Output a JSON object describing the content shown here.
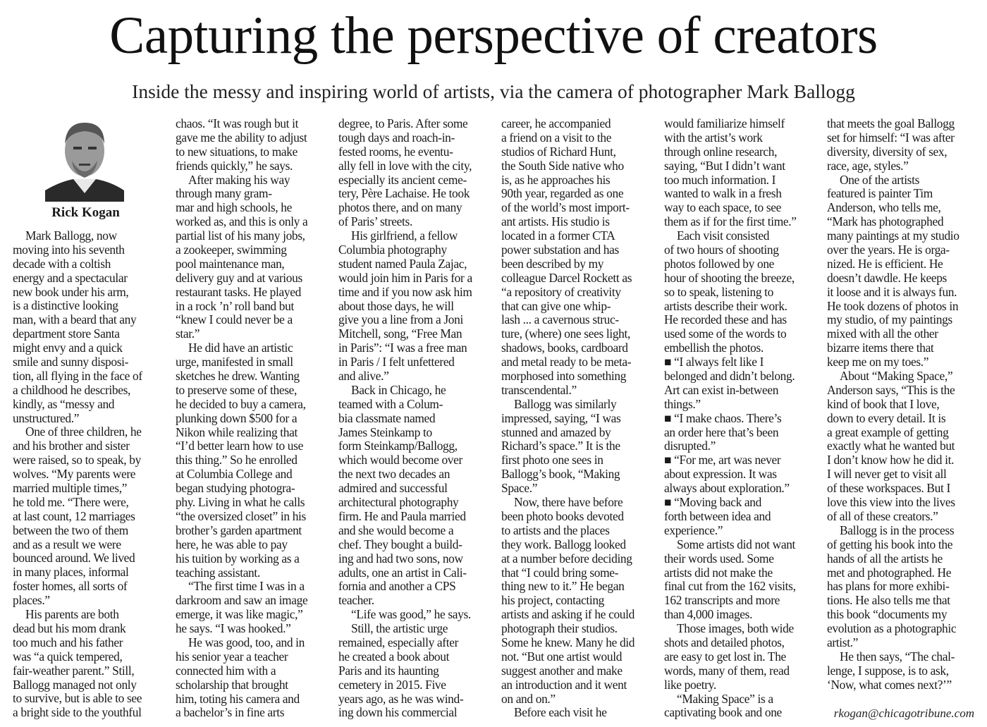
{
  "headline": "Capturing the perspective of creators",
  "subheadline": "Inside the messy and inspiring world of artists, via the camera of photographer Mark Ballogg",
  "byline": "Rick Kogan",
  "author_photo": "headshot of a man with gray hair and a beard",
  "email": "rkogan@chicagotribune.com",
  "columns": [
    {
      "paragraphs": [
        {
          "indent": true,
          "lines": [
            "Mark Ballogg, now",
            "moving into his seventh",
            "decade with a coltish",
            "energy and a spectacular",
            "new book under his arm,",
            "is a distinctive looking",
            "man, with a beard that any",
            "department store Santa",
            "might envy and a quick",
            "smile and sunny disposi-",
            "tion, all flying in the face of",
            "a childhood he describes,",
            "kindly, as “messy and",
            "unstructured.”"
          ]
        },
        {
          "indent": true,
          "lines": [
            "One of three children, he",
            "and his brother and sister",
            "were raised, so to speak, by",
            "wolves. “My parents were",
            "married multiple times,”",
            "he told me. “There were,",
            "at last count, 12 marriages",
            "between the two of them",
            "and as a result we were",
            "bounced around. We lived",
            "in many places, informal",
            "foster homes, all sorts of",
            "places.”"
          ]
        },
        {
          "indent": true,
          "lines": [
            "His parents are both",
            "dead but his mom drank",
            "too much and his father",
            "was “a quick tempered,",
            "fair-weather parent.” Still,",
            "Ballogg managed not only",
            "to survive, but is able to see",
            "a bright side to the youthful"
          ]
        }
      ]
    },
    {
      "paragraphs": [
        {
          "indent": false,
          "lines": [
            "chaos. “It was rough but it",
            "gave me the ability to adjust",
            "to new situations, to make",
            "friends quickly,” he says."
          ]
        },
        {
          "indent": true,
          "lines": [
            "After making his way",
            "through many gram-",
            "mar and high schools, he",
            "worked as, and this is only a",
            "partial list of his many jobs,",
            "a zookeeper, swimming",
            "pool maintenance man,",
            "delivery guy and at various",
            "restaurant tasks. He played",
            "in a rock ’n’ roll band but",
            "“knew I could never be a",
            "star.”"
          ]
        },
        {
          "indent": true,
          "lines": [
            "He did have an artistic",
            "urge, manifested in small",
            "sketches he drew. Wanting",
            "to preserve some of these,",
            "he decided to buy a camera,",
            "plunking down $500 for a",
            "Nikon while realizing that",
            "“I’d better learn how to use",
            "this thing.” So he enrolled",
            "at Columbia College and",
            "began studying photogra-",
            "phy. Living in what he calls",
            "“the oversized closet” in his",
            "brother’s garden apartment",
            "here, he was able to pay",
            "his tuition by working as a",
            "teaching assistant."
          ]
        },
        {
          "indent": true,
          "lines": [
            "“The first time I was in a",
            "darkroom and saw an image",
            "emerge, it was like magic,”",
            "he says. “I was hooked.”"
          ]
        },
        {
          "indent": true,
          "lines": [
            "He was good, too, and in",
            "his senior year a teacher",
            "connected him with a",
            "scholarship that brought",
            "him, toting his camera and",
            "a bachelor’s in fine arts"
          ]
        }
      ]
    },
    {
      "paragraphs": [
        {
          "indent": false,
          "lines": [
            "degree, to Paris. After some",
            "tough days and roach-in-",
            "fested rooms, he eventu-",
            "ally fell in love with the city,",
            "especially its ancient ceme-",
            "tery, Père Lachaise. He took",
            "photos there, and on many",
            "of Paris’ streets."
          ]
        },
        {
          "indent": true,
          "lines": [
            "His girlfriend, a fellow",
            "Columbia photography",
            "student named Paula Zajac,",
            "would join him in Paris for a",
            "time and if you now ask him",
            "about those days, he will",
            "give you a line from a Joni",
            "Mitchell, song, “Free Man",
            "in Paris”: “I was a free man",
            "in Paris / I felt unfettered",
            "and alive.”"
          ]
        },
        {
          "indent": true,
          "lines": [
            "Back in Chicago, he",
            "teamed with a Colum-",
            "bia classmate named",
            "James Steinkamp to",
            "form Steinkamp/Ballogg,",
            "which would become over",
            "the next two decades an",
            "admired and successful",
            "architectural photography",
            "firm. He and Paula married",
            "and she would become a",
            "chef. They bought a build-",
            "ing and had two sons, now",
            "adults, one an artist in Cali-",
            "fornia and another a CPS",
            "teacher."
          ]
        },
        {
          "indent": true,
          "lines": [
            "“Life was good,” he says."
          ]
        },
        {
          "indent": true,
          "lines": [
            "Still, the artistic urge",
            "remained, especially after",
            "he created a book about",
            "Paris and its haunting",
            "cemetery in 2015. Five",
            "years ago, as he was wind-",
            "ing down his commercial"
          ]
        }
      ]
    },
    {
      "paragraphs": [
        {
          "indent": false,
          "lines": [
            "career, he accompanied",
            "a friend on a visit to the",
            "studios of Richard Hunt,",
            "the South Side native who",
            "is, as he approaches his",
            "90th year, regarded as one",
            "of the world’s most import-",
            "ant artists. His studio is",
            "located in a former CTA",
            "power substation and has",
            "been described by my",
            "colleague Darcel Rockett as",
            "“a repository of creativity",
            "that can give one whip-",
            "lash ... a cavernous struc-",
            "ture, (where) one sees light,",
            "shadows, books, cardboard",
            "and metal ready to be meta-",
            "morphosed into something",
            "transcendental.”"
          ]
        },
        {
          "indent": true,
          "lines": [
            "Ballogg was similarly",
            "impressed, saying, “I was",
            "stunned and amazed by",
            "Richard’s space.” It is the",
            "first photo one sees in",
            "Ballogg’s book, “Making",
            "Space.”"
          ]
        },
        {
          "indent": true,
          "lines": [
            "Now, there have before",
            "been photo books devoted",
            "to artists and the places",
            "they work. Ballogg looked",
            "at a number before deciding",
            "that “I could bring some-",
            "thing new to it.” He began",
            "his project, contacting",
            "artists and asking if he could",
            "photograph their studios.",
            "Some he knew. Many he did",
            "not. “But one artist would",
            "suggest another and make",
            "an introduction and it went",
            "on and on.”"
          ]
        },
        {
          "indent": true,
          "lines": [
            "Before each visit he"
          ]
        }
      ]
    },
    {
      "paragraphs": [
        {
          "indent": false,
          "lines": [
            "would familiarize himself",
            "with the artist’s work",
            "through online research,",
            "saying, “But I didn’t want",
            "too much information. I",
            "wanted to walk in a fresh",
            "way to each space, to see",
            "them as if for the first time.”"
          ]
        },
        {
          "indent": true,
          "lines": [
            "Each visit consisted",
            "of two hours of shooting",
            "photos followed by one",
            "hour of shooting the breeze,",
            "so to speak, listening to",
            "artists describe their work.",
            "He recorded these and has",
            "used some of the words to",
            "embellish the photos."
          ]
        },
        {
          "indent": false,
          "lines": [
            "■ “I always felt like I",
            "belonged and didn’t belong.",
            "Art can exist in-between",
            "things.”"
          ]
        },
        {
          "indent": false,
          "lines": [
            "■ “I make chaos. There’s",
            "an order here that’s been",
            "disrupted.”"
          ]
        },
        {
          "indent": false,
          "lines": [
            "■ “For me, art was never",
            "about expression. It was",
            "always about exploration.”"
          ]
        },
        {
          "indent": false,
          "lines": [
            "■ “Moving back and",
            "forth between idea and",
            "experience.”"
          ]
        },
        {
          "indent": true,
          "lines": [
            "Some artists did not want",
            "their words used. Some",
            "artists did not make the",
            "final cut from the 162 visits,",
            "162 transcripts and more",
            "than 4,000 images."
          ]
        },
        {
          "indent": true,
          "lines": [
            "Those images, both wide",
            "shots and detailed photos,",
            "are easy to get lost in. The",
            "words, many of them, read",
            "like poetry."
          ]
        },
        {
          "indent": true,
          "lines": [
            "“Making Space” is a",
            "captivating book and one"
          ]
        }
      ]
    },
    {
      "paragraphs": [
        {
          "indent": false,
          "lines": [
            "that meets the goal Ballogg",
            "set for himself: “I was after",
            "diversity, diversity of sex,",
            "race, age, styles.”"
          ]
        },
        {
          "indent": true,
          "lines": [
            "One of the artists",
            "featured is painter Tim",
            "Anderson, who tells me,",
            "“Mark has photographed",
            "many paintings at my studio",
            "over the years. He is orga-",
            "nized. He is efficient. He",
            "doesn’t dawdle. He keeps",
            "it loose and it is always fun.",
            "He took dozens of photos in",
            "my studio, of my paintings",
            "mixed with all the other",
            "bizarre items there that",
            "keep me on my toes.”"
          ]
        },
        {
          "indent": true,
          "lines": [
            "About “Making Space,”",
            "Anderson says, “This is the",
            "kind of book that I love,",
            "down to every detail. It is",
            "a great example of getting",
            "exactly what he wanted but",
            "I don’t know how he did it.",
            "I will never get to visit all",
            "of these workspaces. But I",
            "love this view into the lives",
            "of all of these creators.”"
          ]
        },
        {
          "indent": true,
          "lines": [
            "Ballogg is in the process",
            "of getting his book into the",
            "hands of all the artists he",
            "met and photographed. He",
            "has plans for more exhibi-",
            "tions. He also tells me that",
            "this book “documents my",
            "evolution as a photographic",
            "artist.”"
          ]
        },
        {
          "indent": true,
          "lines": [
            "He then says, “The chal-",
            "lenge, I suppose, is to ask,",
            "‘Now, what comes next?’”"
          ]
        }
      ]
    }
  ]
}
